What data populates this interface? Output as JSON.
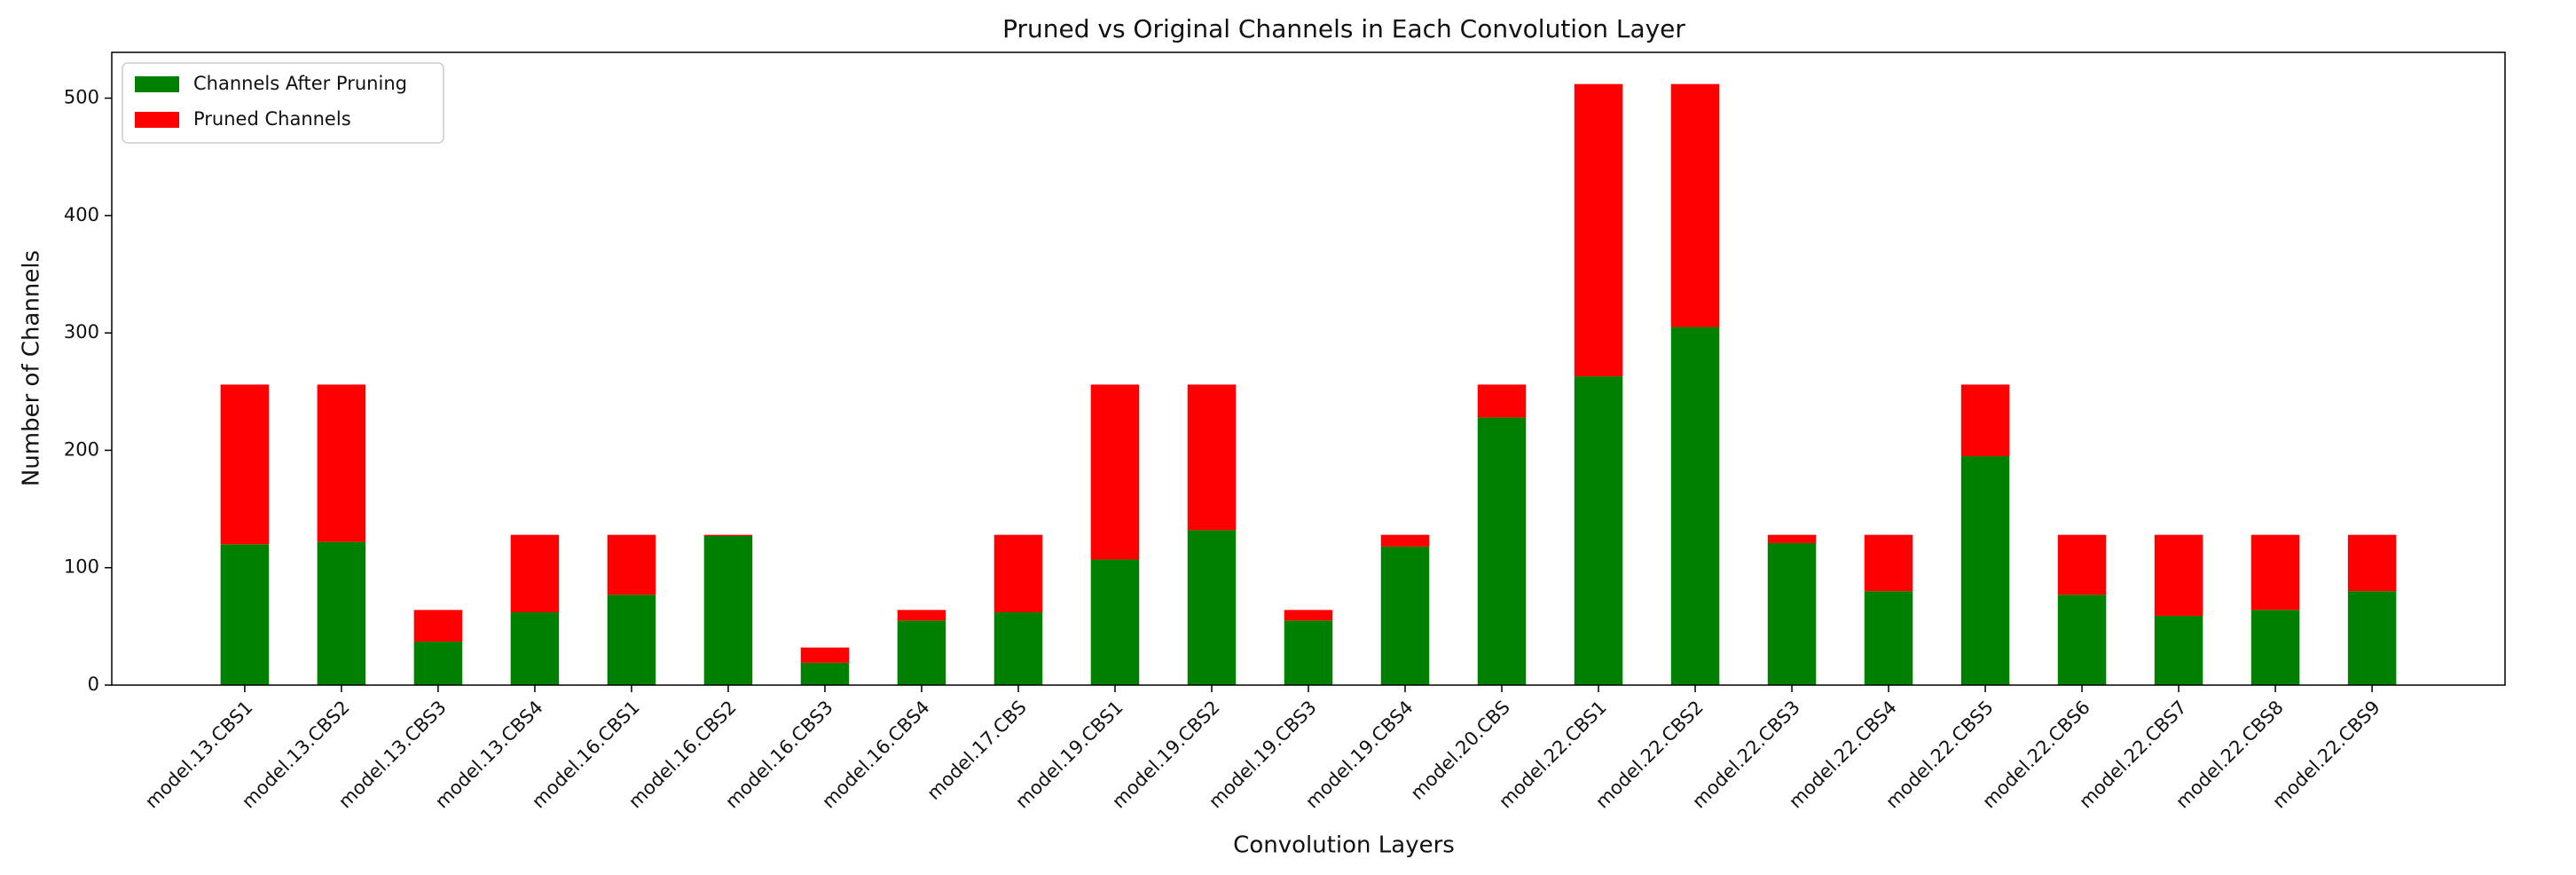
{
  "chart_data": {
    "type": "stacked-bar",
    "title": "Pruned vs Original Channels in Each Convolution Layer",
    "x_label": "Convolution Layers",
    "y_label": "Number of Channels",
    "categories": [
      "model.13.CBS1",
      "model.13.CBS2",
      "model.13.CBS3",
      "model.13.CBS4",
      "model.16.CBS1",
      "model.16.CBS2",
      "model.16.CBS3",
      "model.16.CBS4",
      "model.17.CBS",
      "model.19.CBS1",
      "model.19.CBS2",
      "model.19.CBS3",
      "model.19.CBS4",
      "model.20.CBS",
      "model.22.CBS1",
      "model.22.CBS2",
      "model.22.CBS3",
      "model.22.CBS4",
      "model.22.CBS5",
      "model.22.CBS6",
      "model.22.CBS7",
      "model.22.CBS8",
      "model.22.CBS9"
    ],
    "series": [
      {
        "name": "Channels After Pruning",
        "color": "#008000",
        "values": [
          120,
          122,
          37,
          62,
          77,
          127,
          19,
          55,
          62,
          107,
          132,
          55,
          118,
          228,
          263,
          305,
          121,
          80,
          195,
          77,
          59,
          64,
          80
        ]
      },
      {
        "name": "Pruned Channels",
        "color": "#ff0000",
        "values": [
          136,
          134,
          27,
          66,
          51,
          1,
          13,
          9,
          66,
          149,
          124,
          9,
          10,
          28,
          249,
          207,
          7,
          48,
          61,
          51,
          69,
          64,
          48
        ]
      }
    ],
    "ylim": [
      0,
      539
    ],
    "yticks": [
      0,
      100,
      200,
      300,
      400,
      500
    ],
    "legend": "upper-left"
  }
}
